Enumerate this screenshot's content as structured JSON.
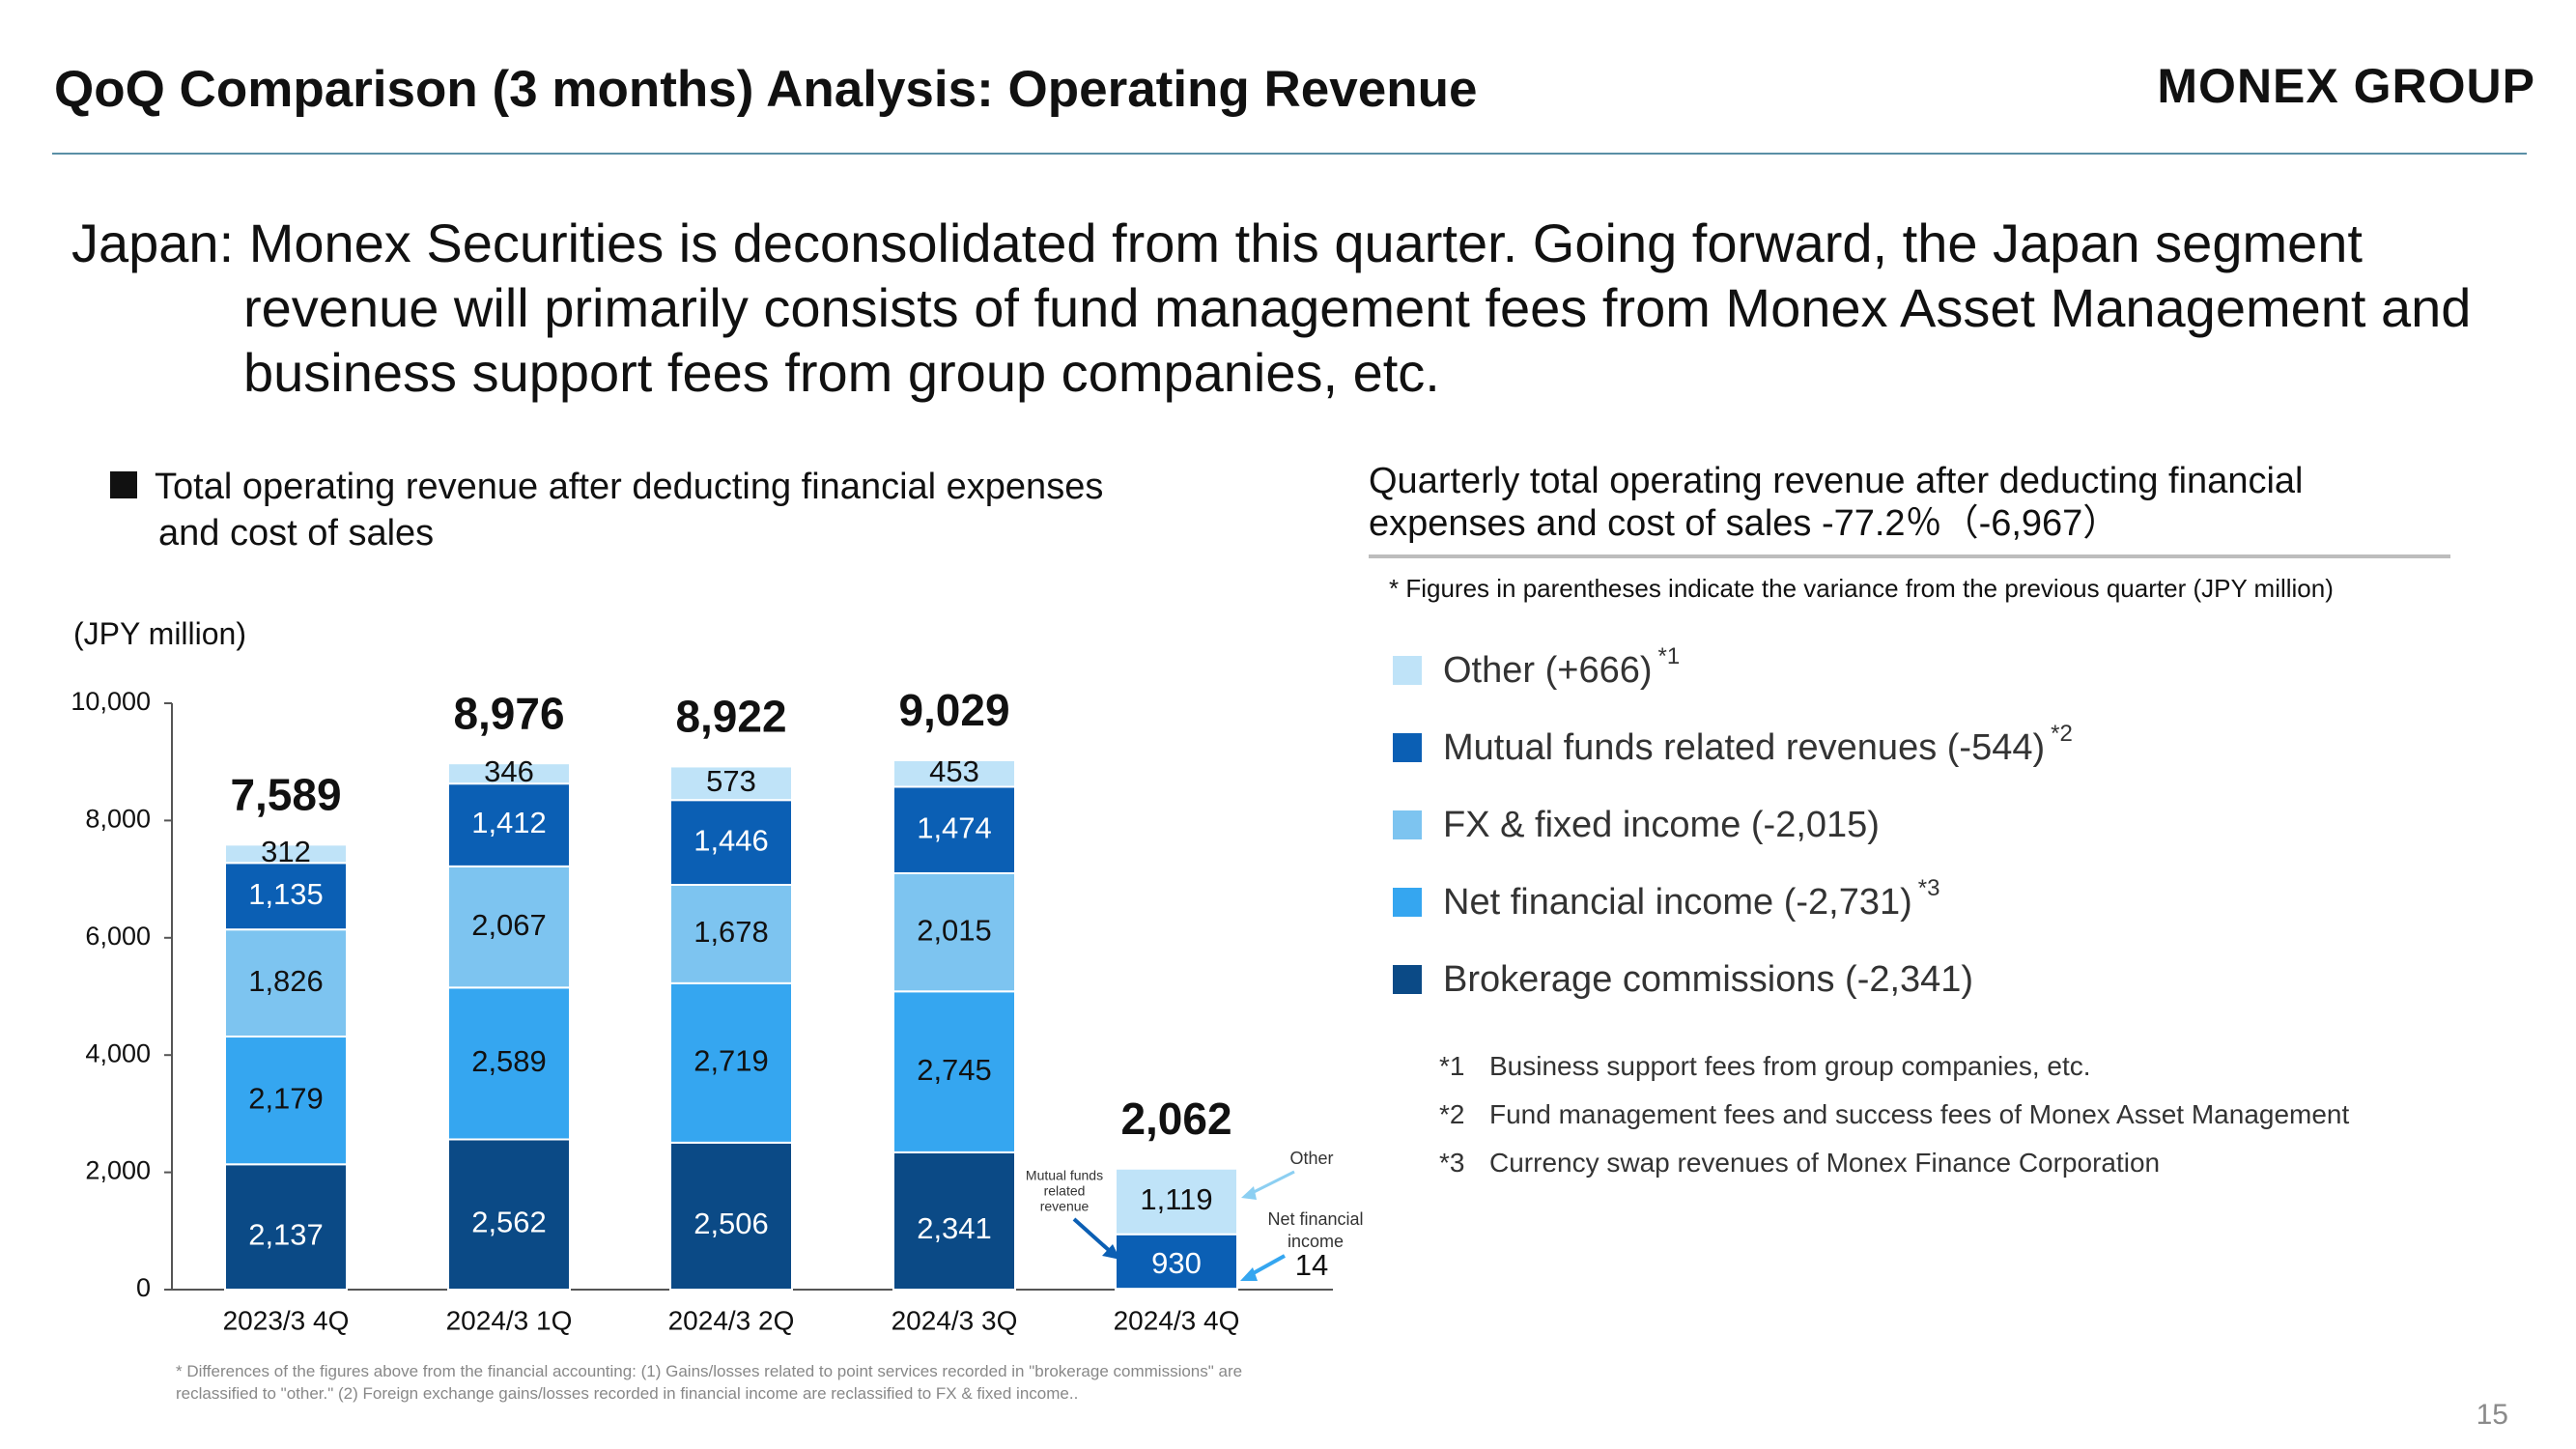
{
  "header": {
    "title": "QoQ Comparison (3 months) Analysis: Operating Revenue",
    "logo": "MONEX GROUP"
  },
  "intro": {
    "line1": "Japan: Monex Securities is deconsolidated from this quarter. Going forward, the Japan segment",
    "line2": "revenue will primarily consists of fund management fees from Monex Asset Management and",
    "line3": "business support fees from group companies, etc."
  },
  "section": {
    "heading_line1": "Total operating revenue after deducting financial expenses",
    "heading_line2": "and cost of sales",
    "unit": "(JPY million)"
  },
  "summary": {
    "line1": "Quarterly total operating revenue after deducting financial",
    "line2": "expenses and cost of sales -77.2％（-6,967）",
    "paren_note": "* Figures in parentheses indicate the variance from the previous quarter (JPY million)"
  },
  "legend": [
    {
      "label": "Other (+666)",
      "sup": "*1",
      "color": "#bfe3f8"
    },
    {
      "label": "Mutual funds related revenues (-544)",
      "sup": "*2",
      "color": "#0b5fb4"
    },
    {
      "label": "FX & fixed income (-2,015)",
      "sup": "",
      "color": "#7dc4f0"
    },
    {
      "label": "Net financial income (-2,731)",
      "sup": "*3",
      "color": "#35a6f0"
    },
    {
      "label": "Brokerage commissions (-2,341)",
      "sup": "",
      "color": "#0b4a86"
    }
  ],
  "footnotes": [
    {
      "mark": "*1",
      "text": "Business support fees from group companies, etc."
    },
    {
      "mark": "*2",
      "text": "Fund management fees and success fees of Monex Asset Management"
    },
    {
      "mark": "*3",
      "text": "Currency swap revenues of Monex Finance Corporation"
    }
  ],
  "bottom_note": "* Differences of the figures above from the financial accounting: (1) Gains/losses related to point services recorded in \"brokerage commissions\" are reclassified to \"other.\" (2) Foreign exchange gains/losses recorded in financial income are reclassified to FX & fixed income..",
  "page_number": "15",
  "chart_data": {
    "type": "bar",
    "stacked": true,
    "ylim": [
      0,
      10000
    ],
    "yticks": [
      "0",
      "2,000",
      "4,000",
      "6,000",
      "8,000",
      "10,000"
    ],
    "ytick_values": [
      0,
      2000,
      4000,
      6000,
      8000,
      10000
    ],
    "ylabel": "(JPY million)",
    "categories": [
      "2023/3 4Q",
      "2024/3 1Q",
      "2024/3 2Q",
      "2024/3 3Q",
      "2024/3 4Q"
    ],
    "totals": [
      7589,
      8976,
      8922,
      9029,
      2062
    ],
    "total_labels": [
      "7,589",
      "8,976",
      "8,922",
      "9,029",
      "2,062"
    ],
    "series": [
      {
        "name": "Brokerage commissions",
        "color": "#0b4a86",
        "label_color": "#ffffff",
        "values": [
          2137,
          2562,
          2506,
          2341,
          0
        ],
        "labels": [
          "2,137",
          "2,562",
          "2,506",
          "2,341",
          ""
        ]
      },
      {
        "name": "Net financial income",
        "color": "#35a6f0",
        "label_color": "#111111",
        "values": [
          2179,
          2589,
          2719,
          2745,
          14
        ],
        "labels": [
          "2,179",
          "2,589",
          "2,719",
          "2,745",
          ""
        ]
      },
      {
        "name": "FX & fixed income",
        "color": "#7dc4f0",
        "label_color": "#111111",
        "values": [
          1826,
          2067,
          1678,
          2015,
          0
        ],
        "labels": [
          "1,826",
          "2,067",
          "1,678",
          "2,015",
          ""
        ]
      },
      {
        "name": "Mutual funds related revenues",
        "color": "#0b5fb4",
        "label_color": "#ffffff",
        "values": [
          1135,
          1412,
          1446,
          1474,
          930
        ],
        "labels": [
          "1,135",
          "1,412",
          "1,446",
          "1,474",
          "930"
        ]
      },
      {
        "name": "Other",
        "color": "#bfe3f8",
        "label_color": "#111111",
        "values": [
          312,
          346,
          573,
          453,
          1119
        ],
        "labels": [
          "312",
          "346",
          "573",
          "453",
          "1,119"
        ]
      }
    ],
    "annotations": [
      {
        "text_lines": [
          "Mutual funds",
          "related",
          "revenue"
        ]
      },
      {
        "text_lines": [
          "Other"
        ]
      },
      {
        "text_lines": [
          "Net financial",
          "income"
        ]
      },
      {
        "text_lines": [
          "14"
        ]
      }
    ]
  }
}
